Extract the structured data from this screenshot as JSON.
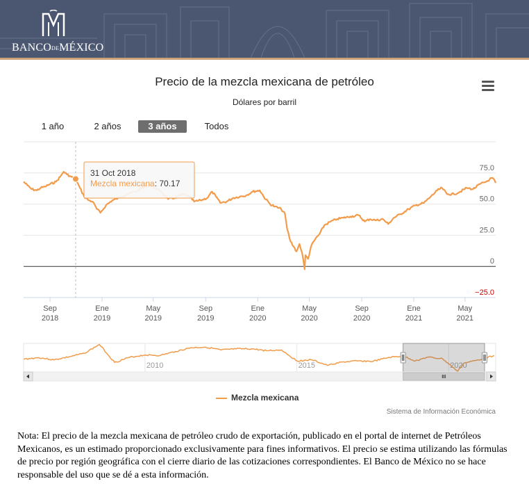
{
  "header": {
    "bank_name_part1": "BANCO",
    "bank_name_de": "DE",
    "bank_name_part2": "MÉXICO",
    "logo": "banxico-logo"
  },
  "chart_data": {
    "type": "line",
    "title": "Precio de la mezcla mexicana de petróleo",
    "subtitle": "Dólares por barril",
    "series": [
      {
        "name": "Mezcla mexicana",
        "color": "#f29b4a",
        "points": [
          [
            "2018-07-01",
            68
          ],
          [
            "2018-07-10",
            65
          ],
          [
            "2018-07-20",
            62
          ],
          [
            "2018-08-01",
            61
          ],
          [
            "2018-08-10",
            63
          ],
          [
            "2018-08-20",
            64
          ],
          [
            "2018-09-01",
            66
          ],
          [
            "2018-09-15",
            68
          ],
          [
            "2018-09-25",
            72
          ],
          [
            "2018-10-03",
            76
          ],
          [
            "2018-10-10",
            74
          ],
          [
            "2018-10-20",
            72
          ],
          [
            "2018-10-31",
            70.17
          ],
          [
            "2018-11-10",
            63
          ],
          [
            "2018-11-20",
            56
          ],
          [
            "2018-12-01",
            53
          ],
          [
            "2018-12-10",
            52
          ],
          [
            "2018-12-20",
            46
          ],
          [
            "2018-12-28",
            43
          ],
          [
            "2019-01-10",
            49
          ],
          [
            "2019-01-25",
            53
          ],
          [
            "2019-02-10",
            55
          ],
          [
            "2019-03-01",
            58
          ],
          [
            "2019-03-20",
            60
          ],
          [
            "2019-04-05",
            63
          ],
          [
            "2019-04-22",
            65
          ],
          [
            "2019-05-05",
            63
          ],
          [
            "2019-05-20",
            60
          ],
          [
            "2019-06-05",
            54
          ],
          [
            "2019-06-20",
            55
          ],
          [
            "2019-07-10",
            58
          ],
          [
            "2019-07-25",
            56
          ],
          [
            "2019-08-05",
            52
          ],
          [
            "2019-08-20",
            53
          ],
          [
            "2019-09-05",
            55
          ],
          [
            "2019-09-16",
            60
          ],
          [
            "2019-09-25",
            56
          ],
          [
            "2019-10-05",
            51
          ],
          [
            "2019-10-20",
            52
          ],
          [
            "2019-11-05",
            55
          ],
          [
            "2019-11-20",
            56
          ],
          [
            "2019-12-05",
            57
          ],
          [
            "2019-12-20",
            60
          ],
          [
            "2020-01-06",
            61
          ],
          [
            "2020-01-15",
            56
          ],
          [
            "2020-01-30",
            50
          ],
          [
            "2020-02-10",
            48
          ],
          [
            "2020-02-25",
            46
          ],
          [
            "2020-03-05",
            42
          ],
          [
            "2020-03-10",
            30
          ],
          [
            "2020-03-18",
            20
          ],
          [
            "2020-03-25",
            16
          ],
          [
            "2020-04-01",
            12
          ],
          [
            "2020-04-08",
            18
          ],
          [
            "2020-04-14",
            11
          ],
          [
            "2020-04-20",
            -2.4
          ],
          [
            "2020-04-22",
            9
          ],
          [
            "2020-04-28",
            6
          ],
          [
            "2020-05-05",
            16
          ],
          [
            "2020-05-15",
            22
          ],
          [
            "2020-05-25",
            26
          ],
          [
            "2020-06-05",
            33
          ],
          [
            "2020-06-20",
            36
          ],
          [
            "2020-07-05",
            38
          ],
          [
            "2020-07-20",
            39
          ],
          [
            "2020-08-05",
            40
          ],
          [
            "2020-08-25",
            41
          ],
          [
            "2020-09-08",
            36
          ],
          [
            "2020-09-20",
            38
          ],
          [
            "2020-10-05",
            37
          ],
          [
            "2020-10-20",
            38
          ],
          [
            "2020-11-02",
            34
          ],
          [
            "2020-11-15",
            39
          ],
          [
            "2020-12-01",
            42
          ],
          [
            "2020-12-20",
            46
          ],
          [
            "2021-01-05",
            49
          ],
          [
            "2021-01-25",
            51
          ],
          [
            "2021-02-10",
            56
          ],
          [
            "2021-02-25",
            61
          ],
          [
            "2021-03-08",
            63
          ],
          [
            "2021-03-20",
            58
          ],
          [
            "2021-04-05",
            58
          ],
          [
            "2021-04-20",
            60
          ],
          [
            "2021-05-05",
            63
          ],
          [
            "2021-05-20",
            62
          ],
          [
            "2021-06-05",
            66
          ],
          [
            "2021-06-20",
            68
          ],
          [
            "2021-06-28",
            70
          ],
          [
            "2021-07-05",
            71
          ],
          [
            "2021-07-12",
            67
          ]
        ]
      }
    ],
    "xaxis": {
      "ticks": [
        {
          "date": "2018-09-01",
          "month": "Sep",
          "year": "2018"
        },
        {
          "date": "2019-01-01",
          "month": "Ene",
          "year": "2019"
        },
        {
          "date": "2019-05-01",
          "month": "May",
          "year": "2019"
        },
        {
          "date": "2019-09-01",
          "month": "Sep",
          "year": "2019"
        },
        {
          "date": "2020-01-01",
          "month": "Ene",
          "year": "2020"
        },
        {
          "date": "2020-05-01",
          "month": "May",
          "year": "2020"
        },
        {
          "date": "2020-09-01",
          "month": "Sep",
          "year": "2020"
        },
        {
          "date": "2021-01-01",
          "month": "Ene",
          "year": "2021"
        },
        {
          "date": "2021-05-01",
          "month": "May",
          "year": "2021"
        }
      ],
      "range": [
        "2018-07-01",
        "2021-07-12"
      ]
    },
    "yaxis": {
      "ticks": [
        {
          "value": 75,
          "label": "75.0",
          "color": "#666666"
        },
        {
          "value": 50,
          "label": "50.0",
          "color": "#666666"
        },
        {
          "value": 25,
          "label": "25.0",
          "color": "#666666"
        },
        {
          "value": 0,
          "label": "0",
          "color": "#666666"
        },
        {
          "value": -25,
          "label": "−25.0",
          "color": "#cc0000"
        }
      ],
      "ylim": [
        -25,
        100
      ],
      "position": "right"
    },
    "tooltip": {
      "date_label": "31 Oct 2018",
      "series_label": "Mezcla mexicana",
      "value_label": "70.17",
      "at_date": "2018-10-31",
      "at_value": 70.17
    },
    "navigator": {
      "year_labels": [
        "2010",
        "2015",
        "2020"
      ],
      "points": [
        [
          2006.0,
          53
        ],
        [
          2006.5,
          60
        ],
        [
          2007.0,
          50
        ],
        [
          2007.5,
          64
        ],
        [
          2008.0,
          80
        ],
        [
          2008.5,
          120
        ],
        [
          2009.0,
          38
        ],
        [
          2009.5,
          62
        ],
        [
          2010.0,
          72
        ],
        [
          2010.5,
          70
        ],
        [
          2011.0,
          88
        ],
        [
          2011.5,
          105
        ],
        [
          2012.0,
          108
        ],
        [
          2012.5,
          95
        ],
        [
          2013.0,
          100
        ],
        [
          2013.5,
          100
        ],
        [
          2014.0,
          92
        ],
        [
          2014.5,
          95
        ],
        [
          2015.0,
          45
        ],
        [
          2015.5,
          50
        ],
        [
          2016.0,
          25
        ],
        [
          2016.5,
          40
        ],
        [
          2017.0,
          45
        ],
        [
          2017.5,
          43
        ],
        [
          2018.0,
          60
        ],
        [
          2018.5,
          68
        ],
        [
          2018.9,
          45
        ],
        [
          2019.3,
          62
        ],
        [
          2019.8,
          55
        ],
        [
          2020.3,
          -2.4
        ],
        [
          2020.5,
          35
        ],
        [
          2021.0,
          50
        ],
        [
          2021.5,
          70
        ]
      ],
      "xlim": [
        2006.0,
        2021.55
      ],
      "ylim": [
        -5,
        125
      ],
      "selection_start": 2018.5
    },
    "legend": "bottom-center",
    "grid": true
  },
  "range_selector": {
    "buttons": [
      "1 año",
      "2 años",
      "3 años",
      "Todos"
    ],
    "active": "3 años"
  },
  "source_credit": "Sistema de Información Económica",
  "note": "Nota: El precio de la mezcla mexicana de petróleo crudo de exportación, publicado en el portal de internet de Petróleos Mexicanos, es un estimado proporcionado exclusivamente para fines informativos. El precio se estima utilizando las fórmulas de precio por región geográfica con el cierre diario de las cotizaciones correspondientes. El Banco de México no se hace responsable del uso que se dé a esta información."
}
